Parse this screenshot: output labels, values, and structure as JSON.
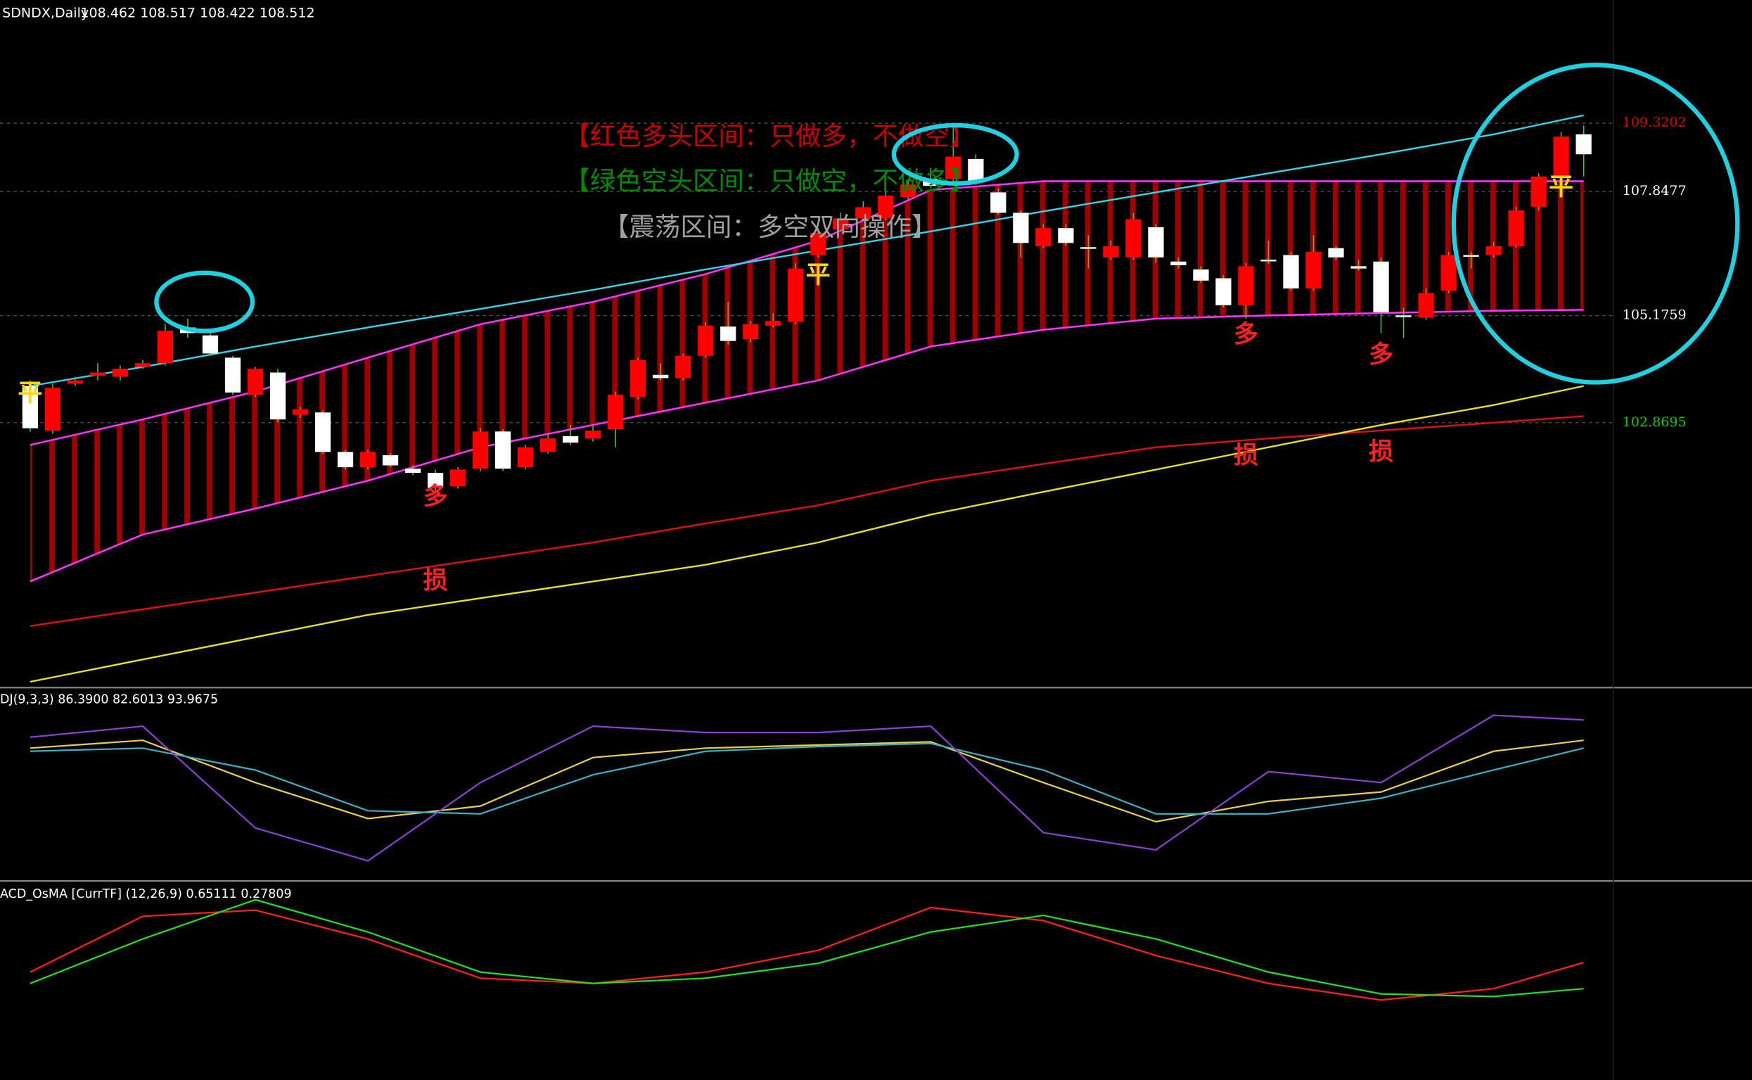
{
  "chart_data": [
    {
      "type": "candlestick",
      "title": "SDNDX,Daily",
      "subtitle": "108.462 108.517 108.422 108.512",
      "open": [
        103.66,
        102.7,
        103.71,
        103.88,
        103.86,
        104.07,
        104.15,
        104.92,
        104.75,
        104.27,
        103.47,
        103.95,
        103.04,
        103.09,
        102.24,
        101.91,
        102.17,
        101.88,
        101.79,
        101.5,
        101.88,
        102.68,
        101.91,
        102.24,
        102.58,
        102.53,
        102.73,
        103.42,
        103.9,
        103.83,
        104.31,
        104.94,
        104.67,
        104.96,
        105.04,
        106.48,
        107.03,
        107.27,
        107.27,
        107.73,
        108.12,
        108.12,
        108.55,
        107.83,
        107.39,
        106.67,
        107.06,
        106.65,
        106.43,
        106.43,
        107.08,
        106.34,
        106.17,
        105.98,
        105.4,
        106.38,
        106.48,
        105.76,
        106.63,
        106.24,
        106.34,
        105.18,
        105.13,
        105.71,
        106.48,
        106.48,
        106.67,
        107.52,
        108.19,
        109.08
      ],
      "high": [
        103.78,
        103.71,
        103.86,
        104.15,
        104.1,
        104.22,
        104.99,
        105.11,
        104.84,
        104.31,
        104.07,
        104.03,
        103.21,
        103.14,
        102.29,
        102.29,
        102.22,
        101.95,
        101.86,
        101.91,
        102.75,
        102.73,
        102.39,
        102.63,
        102.82,
        102.82,
        103.54,
        104.27,
        104.15,
        104.36,
        105.04,
        105.47,
        105.06,
        105.23,
        106.31,
        107.06,
        107.39,
        107.64,
        107.88,
        108.12,
        108.36,
        109.32,
        108.65,
        107.92,
        107.44,
        107.15,
        107.15,
        106.91,
        106.79,
        107.39,
        107.15,
        106.43,
        106.24,
        106.05,
        106.31,
        106.79,
        106.55,
        106.91,
        106.67,
        106.38,
        106.43,
        105.35,
        105.76,
        106.55,
        106.55,
        106.77,
        107.52,
        108.24,
        109.13,
        109.27
      ],
      "low": [
        102.68,
        102.63,
        103.66,
        103.78,
        103.78,
        104.03,
        104.1,
        104.7,
        104.31,
        103.47,
        103.42,
        102.87,
        102.97,
        102.2,
        101.86,
        101.86,
        101.91,
        101.74,
        101.38,
        101.45,
        101.83,
        101.83,
        101.86,
        102.2,
        102.39,
        102.46,
        102.34,
        103.37,
        103.78,
        103.78,
        104.27,
        104.55,
        104.6,
        104.92,
        104.99,
        106.43,
        106.99,
        107.23,
        107.23,
        107.68,
        107.92,
        108.07,
        107.99,
        107.35,
        106.43,
        106.63,
        106.67,
        106.19,
        106.38,
        106.38,
        106.31,
        106.19,
        105.88,
        105.35,
        105.11,
        106.29,
        105.71,
        105.71,
        106.38,
        106.14,
        104.8,
        104.7,
        105.08,
        105.66,
        106.19,
        106.43,
        106.63,
        107.44,
        108.12,
        108.17
      ],
      "close": [
        102.75,
        103.62,
        103.78,
        103.95,
        104.03,
        104.15,
        104.85,
        104.8,
        104.36,
        103.52,
        104.03,
        102.94,
        103.16,
        102.24,
        101.91,
        102.24,
        101.95,
        101.79,
        101.47,
        101.86,
        102.68,
        101.88,
        102.34,
        102.53,
        102.44,
        102.7,
        103.47,
        104.22,
        103.83,
        104.31,
        104.96,
        104.63,
        104.99,
        105.06,
        106.19,
        106.96,
        107.27,
        107.51,
        107.76,
        108.0,
        107.97,
        108.6,
        108.07,
        107.39,
        106.74,
        107.06,
        106.74,
        106.63,
        106.67,
        107.25,
        106.43,
        106.26,
        105.93,
        105.4,
        106.24,
        106.36,
        105.76,
        106.55,
        106.43,
        106.19,
        105.25,
        105.16,
        105.66,
        106.48,
        106.45,
        106.67,
        107.44,
        108.17,
        109.03,
        108.65
      ],
      "up_color": "#ff0000",
      "down_color": "#ffffff",
      "wick_color": "#33cc33",
      "ylim": [
        97.19,
        111.97
      ],
      "yticks": [
        109.3202,
        107.8477,
        105.1759,
        102.8695
      ],
      "ytick_colors": [
        "#e00000",
        "#ffffff",
        "#ffffff",
        "#00d000"
      ],
      "overlay_x": [
        0,
        5,
        10,
        15,
        20,
        25,
        30,
        35,
        40,
        45,
        50,
        55,
        60,
        65,
        69
      ],
      "band": {
        "color": "#ff33ff",
        "fill": "#b00000",
        "upper": [
          102.39,
          102.94,
          103.54,
          104.27,
          104.99,
          105.47,
          106.07,
          106.79,
          107.88,
          108.07,
          108.07,
          108.07,
          108.07,
          108.07,
          108.07
        ],
        "lower": [
          99.45,
          100.46,
          101.02,
          101.62,
          102.34,
          102.82,
          103.3,
          103.78,
          104.51,
          104.87,
          105.11,
          105.18,
          105.23,
          105.28,
          105.3
        ]
      },
      "overlays": [
        {
          "color": "#33d6e6",
          "values": [
            103.66,
            104.07,
            104.51,
            104.92,
            105.32,
            105.73,
            106.17,
            106.58,
            106.99,
            107.42,
            107.83,
            108.24,
            108.65,
            109.08,
            109.49
          ]
        },
        {
          "color": "#e01010",
          "values": [
            98.49,
            98.85,
            99.21,
            99.57,
            99.93,
            100.29,
            100.7,
            101.09,
            101.62,
            101.98,
            102.34,
            102.53,
            102.7,
            102.87,
            103.01
          ]
        },
        {
          "color": "#e6e020",
          "values": [
            97.29,
            97.77,
            98.25,
            98.73,
            99.09,
            99.45,
            99.81,
            100.29,
            100.89,
            101.38,
            101.86,
            102.34,
            102.82,
            103.25,
            103.66
          ]
        }
      ],
      "annotations": [
        {
          "text": "【红色多头区间：只做多，不做空】",
          "color": "#c80000"
        },
        {
          "text": "【绿色空头区间：只做空，不做多】",
          "color": "#008a00"
        },
        {
          "text": "【震荡区间：多空双向操作】",
          "color": "#a0a0a0"
        }
      ],
      "markers": [
        {
          "label": "平",
          "index": 0,
          "value": 103.49,
          "color": "#ffd700"
        },
        {
          "label": "平",
          "index": 35,
          "value": 106.03,
          "color": "#ffd700"
        },
        {
          "label": "平",
          "index": 68,
          "value": 107.93,
          "color": "#ffd700"
        },
        {
          "label": "多",
          "index": 18,
          "value": 101.26,
          "color": "#ff2020"
        },
        {
          "label": "多",
          "index": 54,
          "value": 104.75,
          "color": "#ff2020"
        },
        {
          "label": "多",
          "index": 60,
          "value": 104.31,
          "color": "#ff2020"
        },
        {
          "label": "损",
          "index": 18,
          "value": 99.45,
          "color": "#ff2020"
        },
        {
          "label": "损",
          "index": 54,
          "value": 102.15,
          "color": "#ff2020"
        },
        {
          "label": "损",
          "index": 60,
          "value": 102.22,
          "color": "#ff2020"
        }
      ]
    },
    {
      "type": "line",
      "title": "DJ(9,3,3) 86.3900 82.6013 93.9675",
      "x": [
        0,
        5,
        10,
        15,
        20,
        25,
        30,
        35,
        40,
        45,
        50,
        55,
        60,
        65,
        69
      ],
      "ylim": [
        -11.4,
        110
      ],
      "series": [
        {
          "color": "#e6d040",
          "values": [
            72,
            77,
            50,
            27,
            35,
            66,
            72,
            74,
            76,
            50,
            25,
            38,
            44,
            70,
            77
          ]
        },
        {
          "color": "#3ab0c0",
          "values": [
            70,
            72,
            58,
            32,
            30,
            55,
            70,
            73,
            75,
            58,
            30,
            30,
            40,
            58,
            72
          ]
        },
        {
          "color": "#8a40d0",
          "values": [
            79,
            86,
            21,
            0,
            50,
            86,
            82,
            82,
            86,
            18,
            7,
            57,
            50,
            93,
            90
          ]
        }
      ]
    },
    {
      "type": "line",
      "title": "ACD_OsMA [CurrTF] (12,26,9) 0.65111 0.27809",
      "x": [
        0,
        5,
        10,
        15,
        20,
        25,
        30,
        35,
        40,
        45,
        50,
        55,
        60,
        65,
        69
      ],
      "ylim": [
        -0.9,
        1.33
      ],
      "series": [
        {
          "color": "#ff2020",
          "values": [
            0.31,
            0.95,
            1.02,
            0.69,
            0.24,
            0.18,
            0.31,
            0.56,
            1.05,
            0.9,
            0.5,
            0.18,
            -0.01,
            0.12,
            0.42
          ]
        },
        {
          "color": "#20e020",
          "values": [
            0.18,
            0.69,
            1.14,
            0.77,
            0.31,
            0.18,
            0.24,
            0.41,
            0.77,
            0.96,
            0.69,
            0.31,
            0.06,
            0.03,
            0.12
          ]
        }
      ]
    }
  ]
}
